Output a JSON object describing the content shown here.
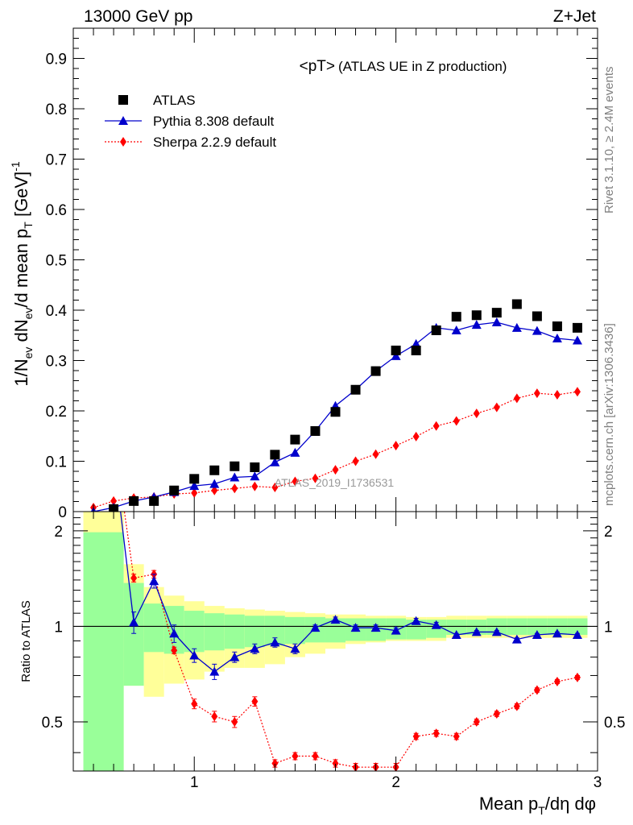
{
  "header": {
    "left": "13000 GeV pp",
    "right": "Z+Jet",
    "plot_title": "<pT>",
    "plot_subtitle": "(ATLAS UE in Z production)"
  },
  "side_labels": {
    "rivet": "Rivet 3.1.10, ≥ 2.4M events",
    "source": "mcplots.cern.ch [arXiv:1306.3436]"
  },
  "watermark": "ATLAS_2019_I1736531",
  "legend": [
    {
      "label": "ATLAS",
      "color": "#000000",
      "marker": "square"
    },
    {
      "label": "Pythia 8.308 default",
      "color": "#0000cc",
      "marker": "triangle"
    },
    {
      "label": "Sherpa 2.2.9 default",
      "color": "#ff0000",
      "marker": "diamond"
    }
  ],
  "axes": {
    "ylabel_main": "1/N_ev dN_ev/d mean p_T [GeV]^-1",
    "ylabel_ratio": "Ratio to ATLAS",
    "xlabel": "Mean p_T/dη dφ"
  },
  "chart_data": [
    {
      "type": "scatter",
      "panel": "main",
      "xlim": [
        0.4,
        3.0
      ],
      "ylim": [
        0,
        0.96
      ],
      "yticks": [
        "0",
        "0.1",
        "0.2",
        "0.3",
        "0.4",
        "0.5",
        "0.6",
        "0.7",
        "0.8",
        "0.9"
      ],
      "series": [
        {
          "name": "ATLAS",
          "color": "#000000",
          "x": [
            0.6,
            0.7,
            0.8,
            0.9,
            1.0,
            1.1,
            1.2,
            1.3,
            1.4,
            1.5,
            1.6,
            1.7,
            1.8,
            1.9,
            2.0,
            2.1,
            2.2,
            2.3,
            2.4,
            2.5,
            2.6,
            2.7,
            2.8,
            2.9
          ],
          "y": [
            0.005,
            0.021,
            0.021,
            0.042,
            0.065,
            0.082,
            0.09,
            0.088,
            0.113,
            0.143,
            0.16,
            0.198,
            0.242,
            0.279,
            0.32,
            0.32,
            0.36,
            0.387,
            0.39,
            0.395,
            0.412,
            0.388,
            0.368,
            0.365
          ]
        },
        {
          "name": "Pythia 8.308 default",
          "color": "#0000cc",
          "x": [
            0.5,
            0.6,
            0.7,
            0.8,
            0.9,
            1.0,
            1.1,
            1.2,
            1.3,
            1.4,
            1.5,
            1.6,
            1.7,
            1.8,
            1.9,
            2.0,
            2.1,
            2.2,
            2.3,
            2.4,
            2.5,
            2.6,
            2.7,
            2.8,
            2.9
          ],
          "y": [
            0.0,
            0.008,
            0.021,
            0.029,
            0.039,
            0.051,
            0.055,
            0.068,
            0.07,
            0.098,
            0.117,
            0.16,
            0.21,
            0.242,
            0.279,
            0.309,
            0.333,
            0.365,
            0.36,
            0.371,
            0.376,
            0.365,
            0.359,
            0.344,
            0.34
          ]
        },
        {
          "name": "Sherpa 2.2.9 default",
          "color": "#ff0000",
          "x": [
            0.5,
            0.6,
            0.7,
            0.8,
            0.9,
            1.0,
            1.1,
            1.2,
            1.3,
            1.4,
            1.5,
            1.6,
            1.7,
            1.8,
            1.9,
            2.0,
            2.1,
            2.2,
            2.3,
            2.4,
            2.5,
            2.6,
            2.7,
            2.8,
            2.9
          ],
          "y": [
            0.008,
            0.021,
            0.027,
            0.029,
            0.035,
            0.037,
            0.042,
            0.046,
            0.05,
            0.048,
            0.06,
            0.066,
            0.083,
            0.1,
            0.114,
            0.131,
            0.149,
            0.17,
            0.18,
            0.195,
            0.207,
            0.225,
            0.235,
            0.232,
            0.238
          ]
        }
      ]
    },
    {
      "type": "line",
      "panel": "ratio",
      "xlim": [
        0.4,
        3.0
      ],
      "ylim": [
        0.35,
        2.3
      ],
      "reference": 1,
      "xticks": [
        "1",
        "2",
        "3"
      ],
      "yticks": [
        "0.5",
        "1",
        "2"
      ],
      "bands": {
        "edges": [
          0.45,
          0.65,
          0.75,
          0.85,
          0.95,
          1.05,
          1.15,
          1.25,
          1.35,
          1.45,
          1.55,
          1.65,
          1.75,
          1.85,
          1.95,
          2.05,
          2.15,
          2.25,
          2.35,
          2.45,
          2.55,
          2.65,
          2.75,
          2.85,
          2.95
        ],
        "green_lo": [
          0.35,
          0.65,
          0.83,
          0.82,
          0.83,
          0.84,
          0.85,
          0.86,
          0.87,
          0.88,
          0.89,
          0.89,
          0.9,
          0.9,
          0.91,
          0.91,
          0.92,
          0.94,
          0.94,
          0.94,
          0.94,
          0.94,
          0.94,
          0.94
        ],
        "green_hi": [
          1.98,
          1.37,
          1.18,
          1.16,
          1.12,
          1.1,
          1.09,
          1.08,
          1.08,
          1.07,
          1.07,
          1.06,
          1.06,
          1.06,
          1.06,
          1.05,
          1.05,
          1.05,
          1.05,
          1.06,
          1.06,
          1.06,
          1.06,
          1.06
        ],
        "yellow_lo": [
          0.35,
          0.65,
          0.6,
          0.66,
          0.68,
          0.72,
          0.74,
          0.74,
          0.76,
          0.8,
          0.82,
          0.85,
          0.88,
          0.89,
          0.9,
          0.9,
          0.9,
          0.92,
          0.92,
          0.92,
          0.92,
          0.92,
          0.92,
          0.92
        ],
        "yellow_hi": [
          2.3,
          1.57,
          1.33,
          1.25,
          1.2,
          1.16,
          1.14,
          1.13,
          1.12,
          1.11,
          1.1,
          1.09,
          1.09,
          1.08,
          1.08,
          1.07,
          1.07,
          1.08,
          1.08,
          1.08,
          1.08,
          1.08,
          1.08,
          1.08
        ]
      },
      "series": [
        {
          "name": "Pythia 8.308 default",
          "color": "#0000cc",
          "x": [
            0.6,
            0.7,
            0.8,
            0.9,
            1.0,
            1.1,
            1.2,
            1.3,
            1.4,
            1.5,
            1.6,
            1.7,
            1.8,
            1.9,
            2.0,
            2.1,
            2.2,
            2.3,
            2.4,
            2.5,
            2.6,
            2.7,
            2.8,
            2.9
          ],
          "y": [
            3.5,
            1.03,
            1.39,
            0.95,
            0.81,
            0.72,
            0.8,
            0.85,
            0.89,
            0.85,
            0.99,
            1.05,
            0.99,
            0.99,
            0.97,
            1.04,
            1.01,
            0.94,
            0.96,
            0.96,
            0.91,
            0.94,
            0.95,
            0.94
          ],
          "err": [
            0,
            0.08,
            0.07,
            0.06,
            0.04,
            0.04,
            0.03,
            0.03,
            0.03,
            0.03,
            0.02,
            0.02,
            0.02,
            0.02,
            0.02,
            0.02,
            0.02,
            0.01,
            0.01,
            0.01,
            0.01,
            0.01,
            0.01,
            0.01
          ]
        },
        {
          "name": "Sherpa 2.2.9 default",
          "color": "#ff0000",
          "x": [
            0.6,
            0.7,
            0.8,
            0.9,
            1.0,
            1.1,
            1.2,
            1.3,
            1.4,
            1.5,
            1.6,
            1.7,
            1.8,
            1.9,
            2.0,
            2.1,
            2.2,
            2.3,
            2.4,
            2.5,
            2.6,
            2.7,
            2.8,
            2.9
          ],
          "y": [
            4.0,
            1.42,
            1.46,
            0.84,
            0.57,
            0.52,
            0.5,
            0.58,
            0.37,
            0.39,
            0.39,
            0.37,
            0.36,
            0.36,
            0.36,
            0.45,
            0.46,
            0.45,
            0.5,
            0.53,
            0.56,
            0.63,
            0.67,
            0.69
          ],
          "err": [
            0,
            0.04,
            0.04,
            0.02,
            0.02,
            0.02,
            0.02,
            0.02,
            0.01,
            0.01,
            0.01,
            0.01,
            0.01,
            0.01,
            0.01,
            0.01,
            0.01,
            0.01,
            0.01,
            0.01,
            0.01,
            0.01,
            0.01,
            0.01
          ]
        }
      ]
    }
  ]
}
